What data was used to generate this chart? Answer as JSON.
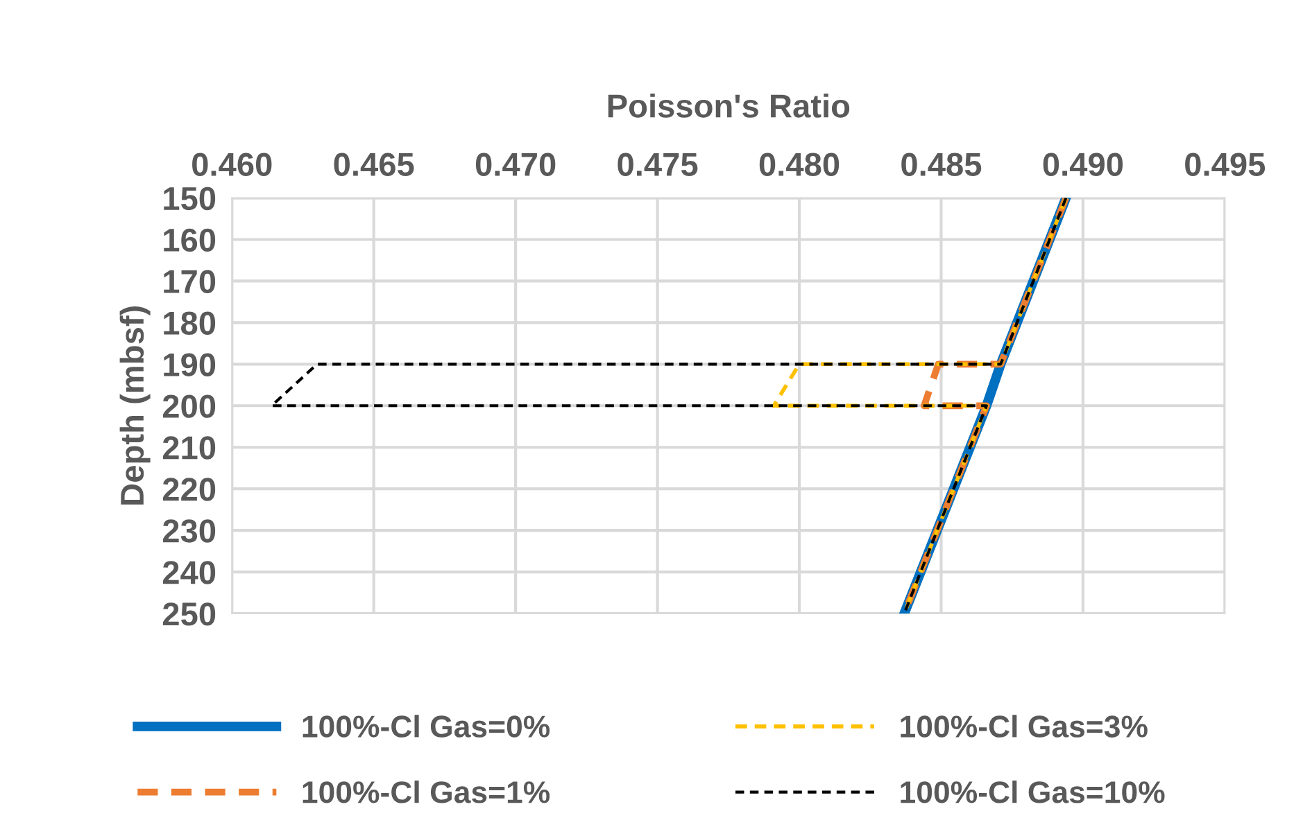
{
  "chart_data": {
    "type": "line",
    "xlabel": "Poisson's Ratio",
    "ylabel": "Depth (mbsf)",
    "xlim": [
      0.46,
      0.495
    ],
    "xticks": [
      {
        "value": 0.46,
        "label": "0.460"
      },
      {
        "value": 0.465,
        "label": "0.465"
      },
      {
        "value": 0.47,
        "label": "0.470"
      },
      {
        "value": 0.475,
        "label": "0.475"
      },
      {
        "value": 0.48,
        "label": "0.480"
      },
      {
        "value": 0.485,
        "label": "0.485"
      },
      {
        "value": 0.49,
        "label": "0.490"
      },
      {
        "value": 0.495,
        "label": "0.495"
      }
    ],
    "ylim": [
      250,
      150
    ],
    "yticks": [
      150,
      160,
      170,
      180,
      190,
      200,
      210,
      220,
      230,
      240,
      250
    ],
    "grid": true,
    "legend": "bottom",
    "marker": "none",
    "series": [
      {
        "name": "100%-Cl Gas=0%",
        "color": "#0070c0",
        "line_style": "solid",
        "x": [
          0.4894,
          0.4871,
          0.4866,
          0.4837
        ],
        "values": [
          150,
          190,
          200,
          250
        ]
      },
      {
        "name": "100%-Cl Gas=1%",
        "color": "#ed7d31",
        "line_style": "dashed",
        "x": [
          0.4894,
          0.4871,
          0.4849,
          0.4844,
          0.4866,
          0.4837
        ],
        "values": [
          150,
          190,
          190,
          200,
          200,
          250
        ]
      },
      {
        "name": "100%-Cl Gas=3%",
        "color": "#ffc000",
        "line_style": "dashed",
        "x": [
          0.4894,
          0.4871,
          0.48,
          0.4791,
          0.4866,
          0.4837
        ],
        "values": [
          150,
          190,
          190,
          200,
          200,
          250
        ]
      },
      {
        "name": "100%-Cl Gas=10%",
        "color": "#000000",
        "line_style": "dashed",
        "x": [
          0.4894,
          0.4871,
          0.463,
          0.4614,
          0.4866,
          0.4837
        ],
        "values": [
          150,
          190,
          190,
          200,
          200,
          250
        ]
      }
    ]
  }
}
